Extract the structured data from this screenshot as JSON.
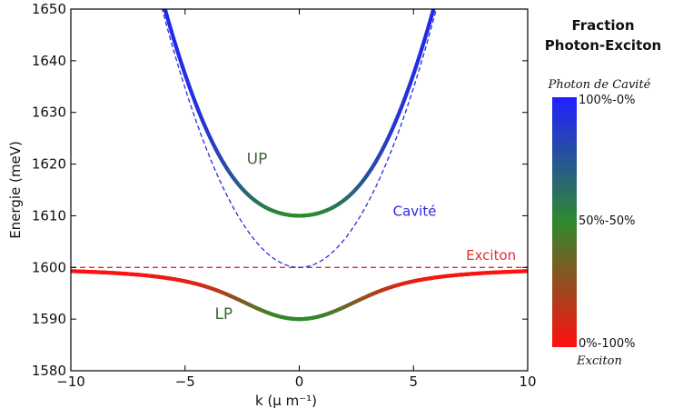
{
  "chart_data": {
    "type": "line",
    "xlabel": "k (μ m⁻¹)",
    "ylabel": "Energie (meV)",
    "xlim": [
      -10,
      10
    ],
    "ylim": [
      1580,
      1650
    ],
    "x_ticks": [
      "−10",
      "−5",
      "0",
      "5",
      "10"
    ],
    "x_tick_values": [
      -10,
      -5,
      0,
      5,
      10
    ],
    "y_ticks": [
      "1580",
      "1590",
      "1600",
      "1610",
      "1620",
      "1630",
      "1640",
      "1650"
    ],
    "y_tick_values": [
      1580,
      1590,
      1600,
      1610,
      1620,
      1630,
      1640,
      1650
    ],
    "grid": false,
    "model": {
      "exciton_energy": 1600,
      "cavity_energy_at_k0": 1600,
      "cavity_curvature_mev_per_k2": 1.389,
      "rabi_half_splitting": 10
    },
    "series": [
      {
        "name": "UP",
        "style": "solid, colored by photon fraction",
        "x": [
          -6.06,
          -5,
          -4,
          -3,
          -2,
          -1,
          0,
          1,
          2,
          3,
          4,
          5,
          6.06
        ],
        "y": [
          1650.0,
          1637.8,
          1623.8,
          1614.4,
          1610.6,
          1610.1,
          1610.0,
          1610.1,
          1610.6,
          1614.4,
          1623.8,
          1637.8,
          1650.0
        ]
      },
      {
        "name": "LP",
        "style": "solid, colored by photon fraction",
        "x": [
          -10,
          -8,
          -6,
          -4,
          -3,
          -2,
          -1,
          0,
          1,
          2,
          3,
          4,
          6,
          8,
          10
        ],
        "y": [
          1599.0,
          1598.9,
          1597.4,
          1594.6,
          1592.1,
          1590.7,
          1590.1,
          1590.0,
          1590.1,
          1590.7,
          1592.1,
          1594.6,
          1597.4,
          1598.9,
          1599.0
        ]
      },
      {
        "name": "Cavité",
        "style": "dashed blue",
        "x": [
          -6,
          -5,
          -4,
          -3,
          -2,
          -1,
          0,
          1,
          2,
          3,
          4,
          5,
          6
        ],
        "y": [
          1650.0,
          1634.7,
          1622.2,
          1612.5,
          1605.6,
          1601.4,
          1600.0,
          1601.4,
          1605.6,
          1612.5,
          1622.2,
          1634.7,
          1650.0
        ]
      },
      {
        "name": "Exciton",
        "style": "dashed red",
        "x": [
          -10,
          10
        ],
        "y": [
          1600,
          1600
        ]
      }
    ],
    "annotations": [
      {
        "text": "UP",
        "x": -2.3,
        "y": 1620,
        "color": "#3d6a34"
      },
      {
        "text": "LP",
        "x": -3.7,
        "y": 1590,
        "color": "#3d6a34"
      },
      {
        "text": "Cavité",
        "x": 4.1,
        "y": 1610,
        "color": "#2a2ae0"
      },
      {
        "text": "Exciton",
        "x": 7.3,
        "y": 1601.5,
        "color": "#e03030"
      }
    ],
    "colorbar": {
      "title": [
        "Fraction",
        "Photon-Exciton"
      ],
      "top_label": "Photon de Cavité",
      "bottom_label": "Exciton",
      "ticks": [
        "100%-0%",
        "50%-50%",
        "0%-100%"
      ],
      "tick_values": [
        1.0,
        0.5,
        0.0
      ],
      "colors": {
        "high": "#2020ff",
        "mid": "#2e8a2e",
        "low": "#ff1010"
      }
    },
    "colors": {
      "cavity": "#2a2ae0",
      "exciton": "#e03030",
      "label_green": "#3d6a34",
      "axis": "#000000"
    }
  }
}
